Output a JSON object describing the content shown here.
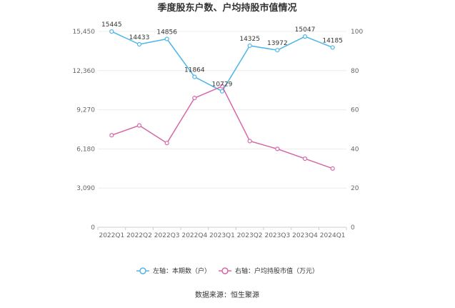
{
  "chart_data": {
    "type": "line",
    "title": "季度股东户数、户均持股市值情况",
    "categories": [
      "2022Q1",
      "2022Q2",
      "2022Q3",
      "2022Q4",
      "2023Q1",
      "2023Q2",
      "2023Q3",
      "2023Q4",
      "2024Q1"
    ],
    "left_axis": {
      "ticks": [
        "0",
        "3,090",
        "6,180",
        "9,270",
        "12,360",
        "15,450"
      ],
      "ylim": [
        0,
        15450
      ]
    },
    "right_axis": {
      "ticks": [
        "0",
        "20",
        "40",
        "60",
        "80",
        "100"
      ],
      "ylim": [
        0,
        100
      ]
    },
    "series": [
      {
        "name": "左轴：本期数（户）",
        "axis": "left",
        "color": "#4db6e8",
        "values": [
          15445,
          14433,
          14856,
          11864,
          10729,
          14325,
          13972,
          15047,
          14185
        ],
        "labels": [
          "15445",
          "14433",
          "14856",
          "11864",
          "10729",
          "14325",
          "13972",
          "15047",
          "14185"
        ]
      },
      {
        "name": "右轴：户均持股市值（万元）",
        "axis": "right",
        "color": "#d768a8",
        "values": [
          47,
          52,
          43,
          66,
          72,
          44,
          40,
          35,
          30
        ]
      }
    ],
    "grid": true,
    "legend_position": "bottom"
  },
  "source": "数据来源：恒生聚源"
}
